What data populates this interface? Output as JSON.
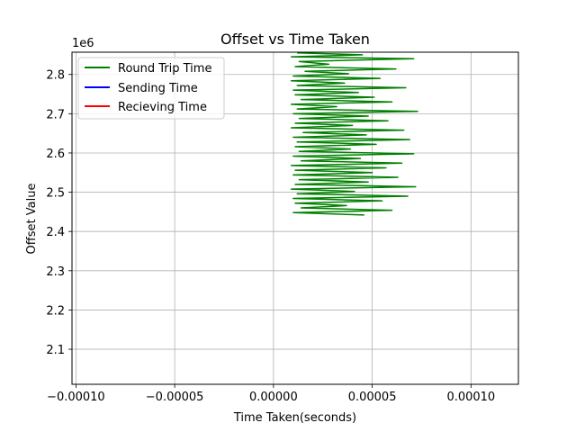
{
  "chart_data": {
    "type": "line",
    "title": "Offset vs Time Taken",
    "xlabel": "Time Taken(seconds)",
    "ylabel": "Offset Value",
    "y_offset_label": "1e6",
    "xlim": [
      -0.000102,
      0.000124
    ],
    "ylim": [
      2.0107,
      2.8567
    ],
    "x_ticks": [
      -0.0001,
      -5e-05,
      0,
      5e-05,
      0.0001
    ],
    "x_tick_labels": [
      "−0.00010",
      "−0.00005",
      "0.00000",
      "0.00005",
      "0.00010"
    ],
    "y_ticks": [
      2.1,
      2.2,
      2.3,
      2.4,
      2.5,
      2.6,
      2.7,
      2.8
    ],
    "y_tick_labels": [
      "2.1",
      "2.2",
      "2.3",
      "2.4",
      "2.5",
      "2.6",
      "2.7",
      "2.8"
    ],
    "grid": true,
    "legend_position": "top-left",
    "series": [
      {
        "name": "Round Trip Time",
        "color": "#008000",
        "x": [
          1.2e-05,
          4.5e-05,
          9e-06,
          7.1e-05,
          1.3e-05,
          2.8e-05,
          1.1e-05,
          6.2e-05,
          1.6e-05,
          3.8e-05,
          1e-05,
          5.4e-05,
          9e-06,
          3.6e-05,
          1.2e-05,
          6.7e-05,
          1e-05,
          4.3e-05,
          1.1e-05,
          5.1e-05,
          1.4e-05,
          6e-05,
          9e-06,
          3.2e-05,
          1.2e-05,
          7.3e-05,
          1e-05,
          4.8e-05,
          1.3e-05,
          5.8e-05,
          1.1e-05,
          4e-05,
          9e-06,
          6.6e-05,
          1.5e-05,
          4.7e-05,
          1e-05,
          6.9e-05,
          1.2e-05,
          5.2e-05,
          1.1e-05,
          3.9e-05,
          1.3e-05,
          7.1e-05,
          1e-05,
          4.4e-05,
          1.4e-05,
          6.5e-05,
          9e-06,
          5.7e-05,
          1.1e-05,
          5e-05,
          1e-05,
          6.3e-05,
          1.3e-05,
          4.8e-05,
          1.1e-05,
          7.2e-05,
          9e-06,
          4.1e-05,
          1.2e-05,
          6.8e-05,
          1e-05,
          5.5e-05,
          1.1e-05,
          3.7e-05,
          1.4e-05,
          6e-05,
          1e-05,
          4.6e-05
        ],
        "y": [
          2.855,
          2.85,
          2.845,
          2.84,
          2.833,
          2.826,
          2.82,
          2.814,
          2.808,
          2.802,
          2.796,
          2.79,
          2.784,
          2.778,
          2.772,
          2.766,
          2.76,
          2.754,
          2.748,
          2.742,
          2.736,
          2.73,
          2.724,
          2.718,
          2.712,
          2.706,
          2.7,
          2.694,
          2.688,
          2.682,
          2.676,
          2.67,
          2.664,
          2.658,
          2.652,
          2.646,
          2.64,
          2.634,
          2.628,
          2.622,
          2.616,
          2.61,
          2.604,
          2.598,
          2.592,
          2.586,
          2.58,
          2.574,
          2.568,
          2.562,
          2.556,
          2.55,
          2.544,
          2.538,
          2.532,
          2.526,
          2.52,
          2.514,
          2.508,
          2.502,
          2.496,
          2.49,
          2.484,
          2.478,
          2.472,
          2.466,
          2.46,
          2.454,
          2.448,
          2.442
        ]
      },
      {
        "name": "Sending Time",
        "color": "#0000ff",
        "x": [],
        "y": []
      },
      {
        "name": "Recieving Time",
        "color": "#ff0000",
        "x": [],
        "y": []
      }
    ]
  }
}
